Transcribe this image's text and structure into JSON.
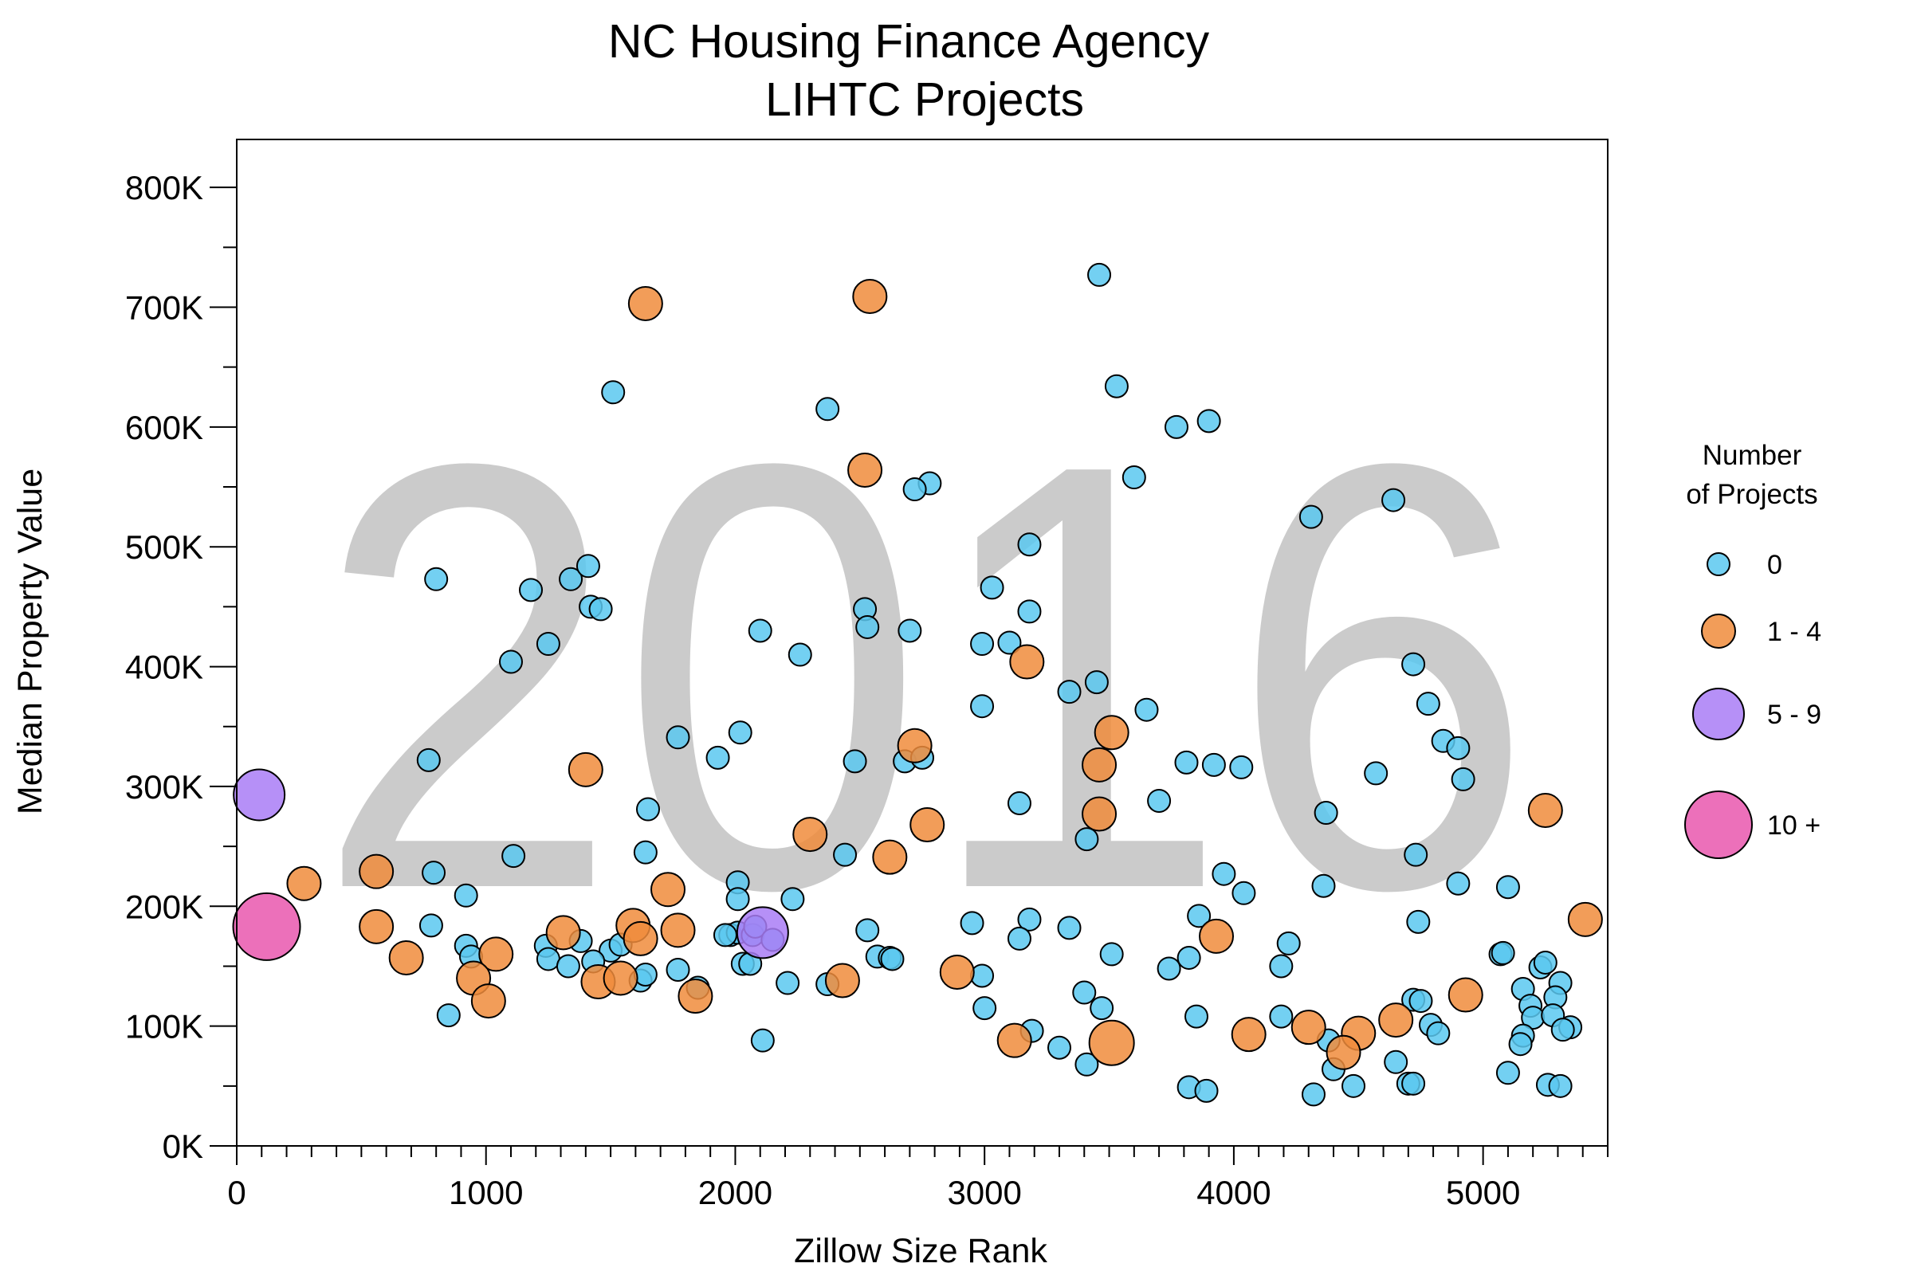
{
  "chart_data": {
    "type": "scatter",
    "title": [
      "NC Housing Finance Agency",
      "LIHTC Projects"
    ],
    "watermark": "2016",
    "xlabel": "Zillow Size Rank",
    "ylabel": "Median Property Value",
    "xlim": [
      0,
      5500
    ],
    "ylim": [
      0,
      840000
    ],
    "x_ticks": [
      {
        "value": 0,
        "label": "0"
      },
      {
        "value": 1000,
        "label": "1000"
      },
      {
        "value": 2000,
        "label": "2000"
      },
      {
        "value": 3000,
        "label": "3000"
      },
      {
        "value": 4000,
        "label": "4000"
      },
      {
        "value": 5000,
        "label": "5000"
      }
    ],
    "y_ticks": [
      {
        "value": 0,
        "label": "0K"
      },
      {
        "value": 100000,
        "label": "100K"
      },
      {
        "value": 200000,
        "label": "200K"
      },
      {
        "value": 300000,
        "label": "300K"
      },
      {
        "value": 400000,
        "label": "400K"
      },
      {
        "value": 500000,
        "label": "500K"
      },
      {
        "value": 600000,
        "label": "600K"
      },
      {
        "value": 700000,
        "label": "700K"
      },
      {
        "value": 800000,
        "label": "800K"
      }
    ],
    "grid": false,
    "legend_position": "right",
    "legend": {
      "title": [
        "Number",
        "of Projects"
      ],
      "entries": [
        {
          "label": "0",
          "category": "0",
          "color": "#5bc8f0"
        },
        {
          "label": "1 - 4",
          "category": "1-4",
          "color": "#f08c3c"
        },
        {
          "label": "5 - 9",
          "category": "5-9",
          "color": "#a97cf6"
        },
        {
          "label": "10 +",
          "category": "10+",
          "color": "#e957ae"
        }
      ]
    },
    "series": [
      {
        "category": "0",
        "color": "#5bc8f0",
        "points": [
          [
            3460,
            727000
          ],
          [
            3530,
            634000
          ],
          [
            1510,
            629000
          ],
          [
            2370,
            615000
          ],
          [
            3900,
            605000
          ],
          [
            3770,
            600000
          ],
          [
            3600,
            558000
          ],
          [
            2780,
            553000
          ],
          [
            2720,
            548000
          ],
          [
            4640,
            539000
          ],
          [
            4310,
            525000
          ],
          [
            800,
            473000
          ],
          [
            1340,
            473000
          ],
          [
            1410,
            484000
          ],
          [
            1180,
            464000
          ],
          [
            3030,
            466000
          ],
          [
            3180,
            502000
          ],
          [
            2520,
            448000
          ],
          [
            1420,
            450000
          ],
          [
            1460,
            448000
          ],
          [
            3180,
            446000
          ],
          [
            2530,
            433000
          ],
          [
            2100,
            430000
          ],
          [
            2700,
            430000
          ],
          [
            1250,
            419000
          ],
          [
            2260,
            410000
          ],
          [
            2990,
            419000
          ],
          [
            3100,
            420000
          ],
          [
            1100,
            404000
          ],
          [
            4720,
            402000
          ],
          [
            3450,
            387000
          ],
          [
            3340,
            379000
          ],
          [
            2990,
            367000
          ],
          [
            3650,
            364000
          ],
          [
            4780,
            369000
          ],
          [
            4840,
            338000
          ],
          [
            1770,
            341000
          ],
          [
            2020,
            345000
          ],
          [
            1930,
            324000
          ],
          [
            4900,
            332000
          ],
          [
            770,
            322000
          ],
          [
            2480,
            321000
          ],
          [
            2680,
            321000
          ],
          [
            2750,
            324000
          ],
          [
            3810,
            320000
          ],
          [
            3920,
            318000
          ],
          [
            4030,
            316000
          ],
          [
            4570,
            311000
          ],
          [
            4920,
            306000
          ],
          [
            1650,
            281000
          ],
          [
            3700,
            288000
          ],
          [
            3140,
            286000
          ],
          [
            4370,
            278000
          ],
          [
            3410,
            256000
          ],
          [
            1640,
            245000
          ],
          [
            1110,
            242000
          ],
          [
            2440,
            243000
          ],
          [
            4730,
            243000
          ],
          [
            790,
            228000
          ],
          [
            3960,
            227000
          ],
          [
            2010,
            220000
          ],
          [
            4900,
            219000
          ],
          [
            5100,
            216000
          ],
          [
            4040,
            211000
          ],
          [
            920,
            209000
          ],
          [
            2010,
            206000
          ],
          [
            2230,
            206000
          ],
          [
            4360,
            217000
          ],
          [
            3860,
            192000
          ],
          [
            3180,
            189000
          ],
          [
            2950,
            186000
          ],
          [
            4740,
            187000
          ],
          [
            780,
            184000
          ],
          [
            3340,
            182000
          ],
          [
            2530,
            180000
          ],
          [
            1980,
            176000
          ],
          [
            2010,
            178000
          ],
          [
            1960,
            176000
          ],
          [
            2070,
            176000
          ],
          [
            2080,
            183000
          ],
          [
            2150,
            172000
          ],
          [
            1380,
            171000
          ],
          [
            3140,
            173000
          ],
          [
            4220,
            169000
          ],
          [
            1240,
            167000
          ],
          [
            920,
            167000
          ],
          [
            940,
            158000
          ],
          [
            1250,
            156000
          ],
          [
            1500,
            163000
          ],
          [
            1540,
            168000
          ],
          [
            1430,
            154000
          ],
          [
            1330,
            150000
          ],
          [
            2570,
            158000
          ],
          [
            2620,
            157000
          ],
          [
            2630,
            156000
          ],
          [
            3510,
            160000
          ],
          [
            3820,
            157000
          ],
          [
            3740,
            148000
          ],
          [
            4190,
            150000
          ],
          [
            5070,
            160000
          ],
          [
            5080,
            161000
          ],
          [
            5230,
            149000
          ],
          [
            5250,
            153000
          ],
          [
            2030,
            152000
          ],
          [
            2060,
            152000
          ],
          [
            1770,
            147000
          ],
          [
            1620,
            138000
          ],
          [
            1640,
            143000
          ],
          [
            2210,
            136000
          ],
          [
            2370,
            135000
          ],
          [
            1850,
            132000
          ],
          [
            2990,
            142000
          ],
          [
            5310,
            136000
          ],
          [
            5160,
            131000
          ],
          [
            3400,
            128000
          ],
          [
            3470,
            115000
          ],
          [
            4720,
            122000
          ],
          [
            4750,
            121000
          ],
          [
            5290,
            124000
          ],
          [
            3000,
            115000
          ],
          [
            4190,
            108000
          ],
          [
            3850,
            108000
          ],
          [
            5190,
            117000
          ],
          [
            5200,
            107000
          ],
          [
            5280,
            109000
          ],
          [
            4790,
            101000
          ],
          [
            5350,
            99000
          ],
          [
            5320,
            97000
          ],
          [
            3190,
            96000
          ],
          [
            4820,
            94000
          ],
          [
            5160,
            92000
          ],
          [
            5150,
            85000
          ],
          [
            4380,
            88000
          ],
          [
            3300,
            82000
          ],
          [
            2110,
            88000
          ],
          [
            850,
            109000
          ],
          [
            3410,
            68000
          ],
          [
            4400,
            64000
          ],
          [
            4650,
            70000
          ],
          [
            5100,
            61000
          ],
          [
            5260,
            51000
          ],
          [
            5310,
            50000
          ],
          [
            4700,
            52000
          ],
          [
            4720,
            52000
          ],
          [
            4480,
            50000
          ],
          [
            3820,
            49000
          ],
          [
            3890,
            46000
          ],
          [
            4320,
            43000
          ]
        ]
      },
      {
        "category": "1-4",
        "color": "#f08c3c",
        "points": [
          [
            2540,
            709000
          ],
          [
            1640,
            703000
          ],
          [
            2520,
            564000
          ],
          [
            3170,
            404000
          ],
          [
            2720,
            334000
          ],
          [
            3510,
            345000
          ],
          [
            3460,
            318000
          ],
          [
            1400,
            314000
          ],
          [
            5250,
            280000
          ],
          [
            3460,
            277000
          ],
          [
            2300,
            260000
          ],
          [
            2770,
            268000
          ],
          [
            2620,
            241000
          ],
          [
            270,
            219000
          ],
          [
            560,
            229000
          ],
          [
            1730,
            214000
          ],
          [
            5410,
            189000
          ],
          [
            560,
            183000
          ],
          [
            3930,
            175000
          ],
          [
            1310,
            178000
          ],
          [
            1590,
            184000
          ],
          [
            1620,
            173000
          ],
          [
            1770,
            180000
          ],
          [
            1040,
            160000
          ],
          [
            680,
            157000
          ],
          [
            950,
            140000
          ],
          [
            1010,
            121000
          ],
          [
            1450,
            137000
          ],
          [
            1540,
            140000
          ],
          [
            1840,
            125000
          ],
          [
            2430,
            138000
          ],
          [
            2890,
            145000
          ],
          [
            4930,
            126000
          ],
          [
            4650,
            105000
          ],
          [
            4300,
            99000
          ],
          [
            4500,
            94000
          ],
          [
            4060,
            93000
          ],
          [
            3120,
            88000
          ],
          [
            4440,
            78000
          ]
        ]
      },
      {
        "category": "1-4 (large)",
        "color": "#f08c3c",
        "points": [
          [
            3510,
            86000
          ]
        ]
      },
      {
        "category": "5-9",
        "color": "#a97cf6",
        "points": [
          [
            90,
            293000
          ],
          [
            2110,
            178000
          ]
        ]
      },
      {
        "category": "10+",
        "color": "#e957ae",
        "points": [
          [
            120,
            183000
          ]
        ]
      }
    ]
  }
}
